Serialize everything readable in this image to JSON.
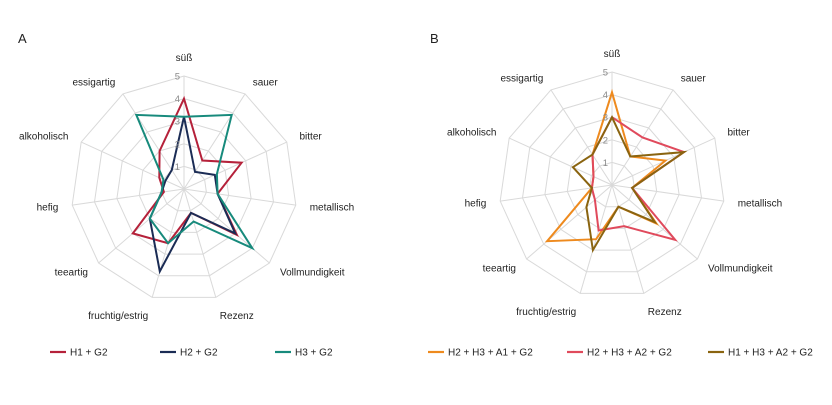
{
  "chart_data": [
    {
      "type": "radar",
      "panel_label": "A",
      "categories": [
        "süß",
        "sauer",
        "bitter",
        "metallisch",
        "Vollmundigkeit",
        "Rezenz",
        "fruchtig/estrig",
        "teeartig",
        "hefig",
        "alkoholisch",
        "essigartig"
      ],
      "rlim": [
        0,
        5
      ],
      "ticks": [
        "1",
        "2",
        "3",
        "4",
        "5"
      ],
      "grid": true,
      "legend_position": "bottom",
      "series": [
        {
          "name": "H1 + G2",
          "color": "#b5213a",
          "values": [
            4.0,
            1.5,
            2.8,
            1.5,
            3.1,
            1.1,
            2.5,
            3.0,
            0.9,
            1.2,
            2.0
          ]
        },
        {
          "name": "H2 + G2",
          "color": "#1b2c55",
          "values": [
            3.2,
            0.9,
            1.5,
            1.5,
            3.0,
            1.1,
            3.8,
            2.0,
            1.0,
            0.9,
            1.0
          ]
        },
        {
          "name": "H3 + G2",
          "color": "#178a7c",
          "values": [
            3.2,
            3.9,
            1.6,
            1.5,
            4.0,
            1.5,
            2.5,
            2.0,
            1.0,
            1.0,
            3.9
          ]
        }
      ]
    },
    {
      "type": "radar",
      "panel_label": "B",
      "categories": [
        "süß",
        "sauer",
        "bitter",
        "metallisch",
        "Vollmundigkeit",
        "Rezenz",
        "fruchtig/estrig",
        "teeartig",
        "hefig",
        "alkoholisch",
        "essigartig"
      ],
      "rlim": [
        0,
        5
      ],
      "ticks": [
        "1",
        "2",
        "3",
        "4",
        "5"
      ],
      "grid": true,
      "legend_position": "bottom",
      "series": [
        {
          "name": "H2 + H3 + A1 + G2",
          "color": "#ee8a1e",
          "values": [
            4.1,
            1.5,
            2.6,
            0.9,
            2.6,
            1.0,
            2.5,
            3.8,
            0.9,
            0.9,
            1.6
          ]
        },
        {
          "name": "H2 + H3 + A2 + G2",
          "color": "#e04a5c",
          "values": [
            3.0,
            2.5,
            3.5,
            0.9,
            3.7,
            1.9,
            2.1,
            1.0,
            0.9,
            0.9,
            1.6
          ]
        },
        {
          "name": "H1 + H3 + A2 + G2",
          "color": "#8a6410",
          "values": [
            3.0,
            1.5,
            3.5,
            0.9,
            2.5,
            1.0,
            3.0,
            1.5,
            0.9,
            1.9,
            1.6
          ]
        }
      ]
    }
  ]
}
